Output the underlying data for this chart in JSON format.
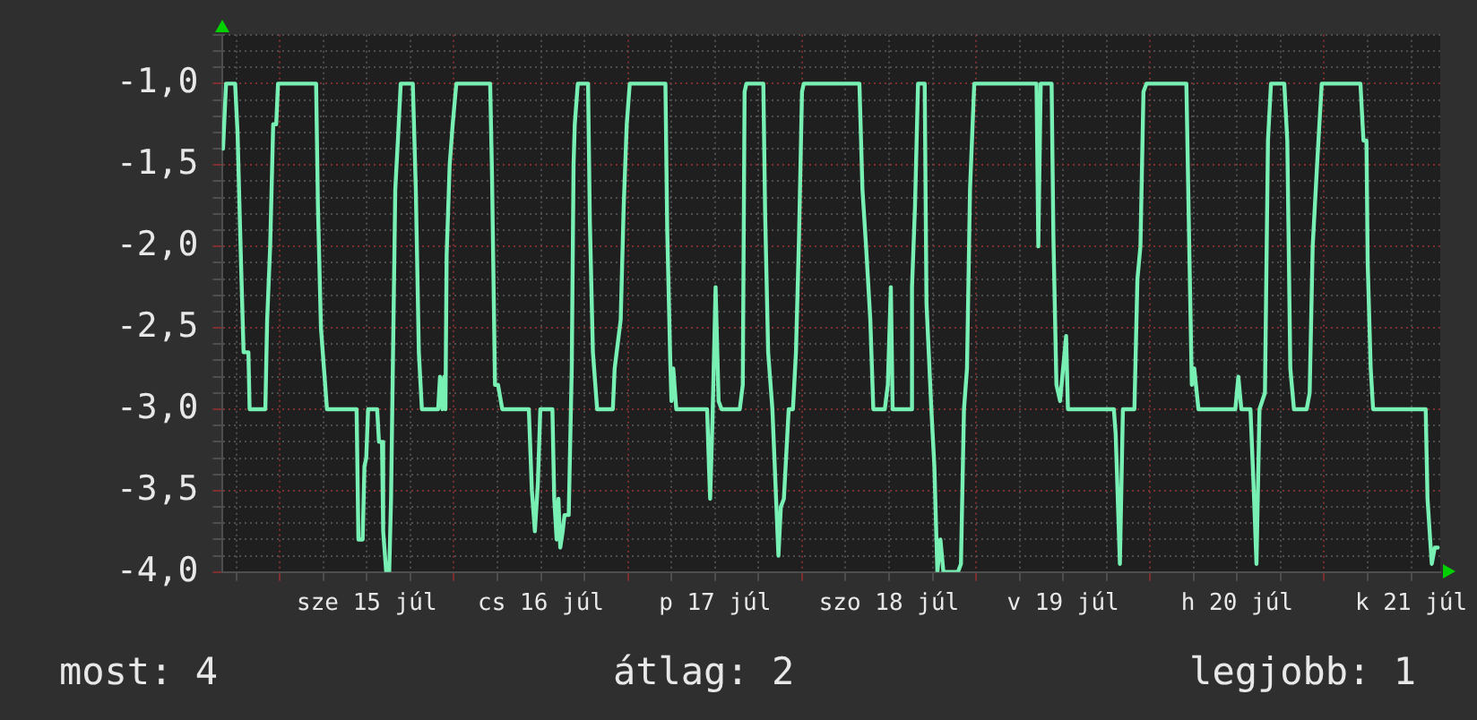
{
  "chart_data": {
    "type": "line",
    "color": "#78f0b4",
    "x": [
      "--07-14T16:10",
      "--07-14T16:35",
      "--07-14T17:50",
      "--07-14T18:10",
      "--07-14T18:35",
      "--07-14T19:00",
      "--07-14T19:40",
      "--07-14T19:50",
      "--07-14T22:00",
      "--07-14T22:15",
      "--07-14T22:40",
      "--07-14T23:05",
      "--07-14T23:30",
      "--07-14T23:45",
      "--07-15T05:00",
      "--07-15T05:15",
      "--07-15T05:40",
      "--07-15T06:05",
      "--07-15T06:30",
      "--07-15T10:35",
      "--07-15T10:50",
      "--07-15T11:25",
      "--07-15T11:40",
      "--07-15T11:55",
      "--07-15T12:10",
      "--07-15T13:25",
      "--07-15T13:40",
      "--07-15T14:05",
      "--07-15T14:15",
      "--07-15T14:40",
      "--07-15T15:05",
      "--07-15T15:20",
      "--07-15T15:55",
      "--07-15T16:20",
      "--07-15T16:40",
      "--07-15T18:20",
      "--07-15T18:45",
      "--07-15T19:10",
      "--07-15T19:35",
      "--07-15T21:50",
      "--07-15T22:05",
      "--07-15T22:25",
      "--07-15T22:40",
      "--07-15T22:50",
      "--07-15T23:00",
      "--07-15T23:25",
      "--07-15T23:50",
      "--07-16T00:20",
      "--07-16T05:00",
      "--07-16T05:15",
      "--07-16T05:40",
      "--07-16T06:05",
      "--07-16T06:40",
      "--07-16T10:20",
      "--07-16T10:45",
      "--07-16T11:10",
      "--07-16T11:35",
      "--07-16T11:55",
      "--07-16T13:35",
      "--07-16T13:50",
      "--07-16T14:10",
      "--07-16T14:25",
      "--07-16T14:40",
      "--07-16T15:00",
      "--07-16T15:15",
      "--07-16T15:50",
      "--07-16T16:15",
      "--07-16T16:30",
      "--07-16T16:40",
      "--07-16T17:05",
      "--07-16T18:30",
      "--07-16T18:45",
      "--07-16T19:10",
      "--07-16T19:45",
      "--07-16T21:55",
      "--07-16T22:10",
      "--07-16T23:00",
      "--07-16T23:25",
      "--07-16T23:50",
      "--07-17T00:15",
      "--07-17T05:10",
      "--07-17T05:25",
      "--07-17T05:50",
      "--07-17T06:00",
      "--07-17T06:15",
      "--07-17T06:40",
      "--07-17T10:55",
      "--07-17T11:10",
      "--07-17T11:20",
      "--07-17T11:40",
      "--07-17T12:05",
      "--07-17T12:30",
      "--07-17T12:55",
      "--07-17T15:25",
      "--07-17T15:50",
      "--07-17T16:05",
      "--07-17T16:20",
      "--07-17T18:40",
      "--07-17T18:55",
      "--07-17T19:20",
      "--07-17T19:55",
      "--07-17T20:20",
      "--07-17T20:45",
      "--07-17T21:05",
      "--07-17T21:30",
      "--07-17T22:10",
      "--07-17T22:45",
      "--07-17T23:10",
      "--07-17T23:35",
      "--07-18T00:00",
      "--07-18T00:15",
      "--07-18T07:55",
      "--07-18T08:20",
      "--07-18T08:50",
      "--07-18T09:25",
      "--07-18T09:50",
      "--07-18T11:25",
      "--07-18T11:50",
      "--07-18T12:15",
      "--07-18T12:30",
      "--07-18T15:00",
      "--07-18T15:10",
      "--07-18T15:35",
      "--07-18T16:00",
      "--07-18T16:55",
      "--07-18T17:10",
      "--07-18T17:50",
      "--07-18T18:15",
      "--07-18T18:40",
      "--07-18T19:05",
      "--07-18T19:30",
      "--07-18T21:30",
      "--07-18T21:55",
      "--07-18T22:20",
      "--07-18T22:45",
      "--07-18T23:10",
      "--07-18T23:45",
      "--07-19T08:20",
      "--07-19T08:35",
      "--07-19T08:55",
      "--07-19T10:25",
      "--07-19T10:40",
      "--07-19T11:05",
      "--07-19T11:35",
      "--07-19T12:00",
      "--07-19T12:25",
      "--07-19T12:40",
      "--07-19T19:00",
      "--07-19T19:15",
      "--07-19T19:50",
      "--07-19T20:15",
      "--07-19T21:50",
      "--07-19T22:15",
      "--07-19T22:40",
      "--07-19T23:05",
      "--07-19T23:30",
      "--07-20T05:00",
      "--07-20T05:25",
      "--07-20T05:45",
      "--07-20T06:05",
      "--07-20T06:40",
      "--07-20T11:45",
      "--07-20T12:10",
      "--07-20T12:35",
      "--07-20T13:50",
      "--07-20T14:15",
      "--07-20T14:40",
      "--07-20T15:05",
      "--07-20T15:50",
      "--07-20T16:15",
      "--07-20T16:40",
      "--07-20T18:30",
      "--07-20T18:55",
      "--07-20T19:20",
      "--07-20T19:50",
      "--07-20T21:35",
      "--07-20T22:00",
      "--07-20T22:25",
      "--07-20T23:05",
      "--07-20T23:40",
      "--07-21T05:00",
      "--07-21T05:25",
      "--07-21T05:50",
      "--07-21T06:00",
      "--07-21T06:25",
      "--07-21T06:45",
      "--07-21T14:00",
      "--07-21T14:15",
      "--07-21T14:50",
      "--07-21T15:15",
      "--07-21T15:40"
    ],
    "values": [
      -1.4,
      -1,
      -1,
      -1.3,
      -2,
      -2.65,
      -2.65,
      -3,
      -3,
      -2.45,
      -2,
      -1.25,
      -1.25,
      -1,
      -1,
      -1.75,
      -2.5,
      -2.75,
      -3,
      -3,
      -3.8,
      -3.8,
      -3.35,
      -3.3,
      -3,
      -3,
      -3.2,
      -3.2,
      -3.75,
      -4,
      -4,
      -3.55,
      -1.65,
      -1.3,
      -1,
      -1,
      -1.65,
      -2.65,
      -3,
      -3,
      -2.8,
      -3,
      -2.8,
      -3,
      -2.05,
      -1.5,
      -1.25,
      -1,
      -1,
      -1.55,
      -2.85,
      -2.85,
      -3,
      -3,
      -3.5,
      -3.75,
      -3.45,
      -3,
      -3,
      -3.55,
      -3.8,
      -3.55,
      -3.85,
      -3.75,
      -3.65,
      -3.65,
      -2.75,
      -1.5,
      -1.25,
      -1,
      -1,
      -1.85,
      -2.65,
      -3,
      -3,
      -2.75,
      -2.45,
      -1.75,
      -1.25,
      -1,
      -1,
      -1.9,
      -2.7,
      -2.95,
      -2.75,
      -3,
      -3,
      -3.35,
      -3.55,
      -3.05,
      -2.25,
      -2.95,
      -3,
      -3,
      -2.85,
      -1.05,
      -1,
      -1,
      -1.8,
      -2.65,
      -3,
      -3.45,
      -3.9,
      -3.6,
      -3.55,
      -3,
      -3,
      -2.65,
      -1.95,
      -1.05,
      -1,
      -1,
      -1.65,
      -2,
      -2.45,
      -3,
      -3,
      -2.85,
      -2.25,
      -3,
      -3,
      -2.25,
      -1.75,
      -1,
      -1,
      -2.35,
      -3,
      -3.35,
      -4,
      -3.8,
      -4,
      -4,
      -3.95,
      -3,
      -2.75,
      -1.65,
      -1,
      -1,
      -2,
      -1,
      -1,
      -1.95,
      -2.85,
      -2.95,
      -2.75,
      -2.55,
      -3,
      -3,
      -3.15,
      -3.95,
      -3,
      -3,
      -2.2,
      -2,
      -1.05,
      -1,
      -1,
      -2.05,
      -2.85,
      -2.75,
      -3,
      -3,
      -2.8,
      -3,
      -3,
      -3.45,
      -3.95,
      -3,
      -2.9,
      -1.35,
      -1,
      -1,
      -1.35,
      -2.75,
      -3,
      -3,
      -2.9,
      -2,
      -1.45,
      -1,
      -1,
      -1.35,
      -1.35,
      -2.1,
      -2.75,
      -3,
      -3,
      -3.55,
      -3.95,
      -3.85,
      -3.85
    ],
    "xlim": [
      "--07-14T16:00",
      "--07-21T16:00"
    ],
    "xticks": [
      {
        "value": "--07-14T18:00",
        "label": null
      },
      {
        "value": "--07-15T00:00",
        "label": null
      },
      {
        "value": "--07-15T06:00",
        "label": null
      },
      {
        "value": "--07-15T12:00",
        "label": "sze 15 júl"
      },
      {
        "value": "--07-15T18:00",
        "label": null
      },
      {
        "value": "--07-16T00:00",
        "label": null
      },
      {
        "value": "--07-16T06:00",
        "label": null
      },
      {
        "value": "--07-16T12:00",
        "label": "cs 16 júl"
      },
      {
        "value": "--07-16T18:00",
        "label": null
      },
      {
        "value": "--07-17T00:00",
        "label": null
      },
      {
        "value": "--07-17T06:00",
        "label": null
      },
      {
        "value": "--07-17T12:00",
        "label": "p 17 júl"
      },
      {
        "value": "--07-17T18:00",
        "label": null
      },
      {
        "value": "--07-18T00:00",
        "label": null
      },
      {
        "value": "--07-18T06:00",
        "label": null
      },
      {
        "value": "--07-18T12:00",
        "label": "szo 18 júl"
      },
      {
        "value": "--07-18T18:00",
        "label": null
      },
      {
        "value": "--07-19T00:00",
        "label": null
      },
      {
        "value": "--07-19T06:00",
        "label": null
      },
      {
        "value": "--07-19T12:00",
        "label": "v 19 júl"
      },
      {
        "value": "--07-19T18:00",
        "label": null
      },
      {
        "value": "--07-20T00:00",
        "label": null
      },
      {
        "value": "--07-20T06:00",
        "label": null
      },
      {
        "value": "--07-20T12:00",
        "label": "h 20 júl"
      },
      {
        "value": "--07-20T18:00",
        "label": null
      },
      {
        "value": "--07-21T00:00",
        "label": null
      },
      {
        "value": "--07-21T06:00",
        "label": null
      },
      {
        "value": "--07-21T12:00",
        "label": "k 21 júl"
      }
    ],
    "ylim": [
      -4,
      -0.7
    ],
    "yticks": [
      {
        "value": -4,
        "label": "-4,0"
      },
      {
        "value": -3.9,
        "label": null
      },
      {
        "value": -3.8,
        "label": null
      },
      {
        "value": -3.7,
        "label": null
      },
      {
        "value": -3.6,
        "label": null
      },
      {
        "value": -3.5,
        "label": "-3,5"
      },
      {
        "value": -3.4,
        "label": null
      },
      {
        "value": -3.3,
        "label": null
      },
      {
        "value": -3.2,
        "label": null
      },
      {
        "value": -3.1,
        "label": null
      },
      {
        "value": -3,
        "label": "-3,0"
      },
      {
        "value": -2.9,
        "label": null
      },
      {
        "value": -2.8,
        "label": null
      },
      {
        "value": -2.7,
        "label": null
      },
      {
        "value": -2.6,
        "label": null
      },
      {
        "value": -2.5,
        "label": "-2,5"
      },
      {
        "value": -2.4,
        "label": null
      },
      {
        "value": -2.3,
        "label": null
      },
      {
        "value": -2.2,
        "label": null
      },
      {
        "value": -2.1,
        "label": null
      },
      {
        "value": -2,
        "label": "-2,0"
      },
      {
        "value": -1.9,
        "label": null
      },
      {
        "value": -1.8,
        "label": null
      },
      {
        "value": -1.7,
        "label": null
      },
      {
        "value": -1.6,
        "label": null
      },
      {
        "value": -1.5,
        "label": "-1,5"
      },
      {
        "value": -1.4,
        "label": null
      },
      {
        "value": -1.3,
        "label": null
      },
      {
        "value": -1.2,
        "label": null
      },
      {
        "value": -1.1,
        "label": null
      },
      {
        "value": -1,
        "label": "-1,0"
      },
      {
        "value": -0.9,
        "label": null
      },
      {
        "value": -0.8,
        "label": null
      },
      {
        "value": -0.7,
        "label": null
      }
    ],
    "grid": true,
    "annotations": [
      "most: 4",
      "átlag: 2",
      "legjobb: 1"
    ]
  }
}
